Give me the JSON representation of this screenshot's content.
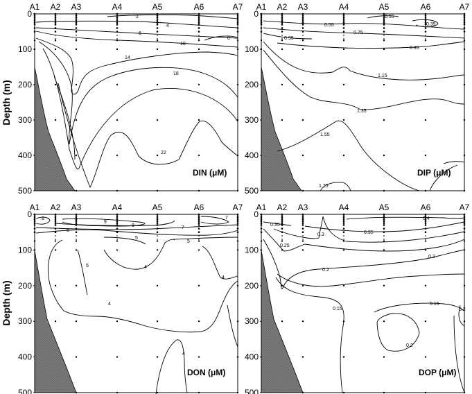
{
  "y_axis_label": "Depth (m)",
  "stations": [
    "A1",
    "A2",
    "A3",
    "A4",
    "A5",
    "A6",
    "A7"
  ],
  "depth_ticks": [
    0,
    100,
    200,
    300,
    400,
    500
  ],
  "chart_data": [
    {
      "type": "contour",
      "id": "din",
      "panel_label": "DIN (μM)",
      "ylim": [
        0,
        500
      ],
      "y_reversed": true,
      "contours": [
        {
          "label": "2",
          "value": 2
        },
        {
          "label": "4",
          "value": 4
        },
        {
          "label": "6",
          "value": 6
        },
        {
          "label": "8",
          "value": 8
        },
        {
          "label": "10",
          "value": 10
        },
        {
          "label": "14",
          "value": 14
        },
        {
          "label": "18",
          "value": 18
        },
        {
          "label": "22",
          "value": 22
        }
      ]
    },
    {
      "type": "contour",
      "id": "dip",
      "panel_label": "DIP (μM)",
      "ylim": [
        0,
        500
      ],
      "y_reversed": true,
      "contours": [
        {
          "label": "0.55",
          "value": 0.55
        },
        {
          "label": "0.35",
          "value": 0.35
        },
        {
          "label": "0.55",
          "value": 0.55
        },
        {
          "label": "0.75",
          "value": 0.75
        },
        {
          "label": "0.95",
          "value": 0.95
        },
        {
          "label": "0.95",
          "value": 0.95
        },
        {
          "label": "1.15",
          "value": 1.15
        },
        {
          "label": "1.35",
          "value": 1.35
        },
        {
          "label": "1.55",
          "value": 1.55
        },
        {
          "label": "1.75",
          "value": 1.75
        }
      ]
    },
    {
      "type": "contour",
      "id": "don",
      "panel_label": "DON (μM)",
      "ylim": [
        0,
        500
      ],
      "y_reversed": true,
      "contours": [
        {
          "label": "8",
          "value": 8
        },
        {
          "label": "9",
          "value": 9
        },
        {
          "label": "8",
          "value": 8
        },
        {
          "label": "7",
          "value": 7
        },
        {
          "label": "6",
          "value": 6
        },
        {
          "label": "7",
          "value": 7
        },
        {
          "label": "5",
          "value": 5
        },
        {
          "label": "5",
          "value": 5
        },
        {
          "label": "5",
          "value": 5
        },
        {
          "label": "4",
          "value": 4
        },
        {
          "label": "4",
          "value": 4
        },
        {
          "label": "4",
          "value": 4
        },
        {
          "label": "4",
          "value": 4
        }
      ]
    },
    {
      "type": "contour",
      "id": "dop",
      "panel_label": "DOP (μM)",
      "ylim": [
        0,
        500
      ],
      "y_reversed": true,
      "contours": [
        {
          "label": "0.4",
          "value": 0.4
        },
        {
          "label": "0.35",
          "value": 0.35
        },
        {
          "label": "0.35",
          "value": 0.35
        },
        {
          "label": "0.3",
          "value": 0.3
        },
        {
          "label": "0.25",
          "value": 0.25
        },
        {
          "label": "0.2",
          "value": 0.2
        },
        {
          "label": "0.2",
          "value": 0.2
        },
        {
          "label": "0.15",
          "value": 0.15
        },
        {
          "label": "0.15",
          "value": 0.15
        },
        {
          "label": "0.2",
          "value": 0.2
        },
        {
          "label": "0.2",
          "value": 0.2
        }
      ]
    }
  ]
}
